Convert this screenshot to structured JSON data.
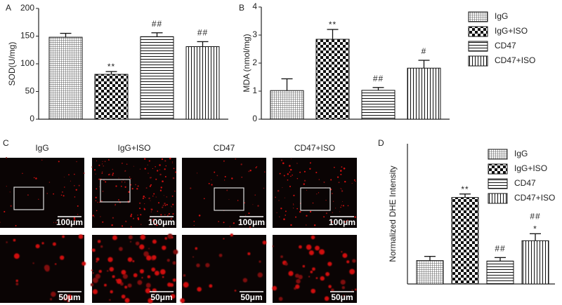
{
  "panel_labels": [
    "A",
    "B",
    "C",
    "D"
  ],
  "chart_data": [
    {
      "type": "bar",
      "ylabel": "SOD(U/mg)",
      "ylim": [
        0,
        200
      ],
      "yticks": [
        0,
        50,
        100,
        150,
        200
      ],
      "series": [
        {
          "name": "IgG",
          "pattern": "crosshatch",
          "values": [
            148
          ],
          "errors": [
            7
          ]
        },
        {
          "name": "IgG+ISO",
          "pattern": "checker",
          "values": [
            81
          ],
          "errors": [
            5
          ],
          "annotation": [
            "**"
          ]
        },
        {
          "name": "CD47",
          "pattern": "horizontal",
          "values": [
            149
          ],
          "errors": [
            7
          ],
          "annotation": [
            "##"
          ]
        },
        {
          "name": "CD47+ISO",
          "pattern": "vertical",
          "values": [
            131
          ],
          "errors": [
            9
          ],
          "annotation": [
            "##"
          ]
        }
      ]
    },
    {
      "type": "bar",
      "ylabel": "MDA (nmol/mg)",
      "ylim": [
        0,
        4
      ],
      "yticks": [
        0,
        1,
        2,
        3,
        4
      ],
      "series": [
        {
          "pattern": "crosshatch",
          "values": [
            1.02
          ],
          "errors": [
            0.42
          ]
        },
        {
          "pattern": "checker",
          "values": [
            2.85
          ],
          "errors": [
            0.35
          ],
          "annotation": [
            "**"
          ]
        },
        {
          "pattern": "horizontal",
          "values": [
            1.03
          ],
          "errors": [
            0.1
          ],
          "annotation": [
            "##"
          ]
        },
        {
          "pattern": "vertical",
          "values": [
            1.82
          ],
          "errors": [
            0.28
          ],
          "annotation": [
            "#"
          ]
        }
      ]
    },
    {
      "type": "bar",
      "ylabel": "Normalized DHE Intensity",
      "ylim": [
        0,
        6
      ],
      "series": [
        {
          "name": "IgG",
          "pattern": "crosshatch",
          "values": [
            1.0
          ],
          "errors": [
            0.18
          ]
        },
        {
          "name": "IgG+ISO",
          "pattern": "checker",
          "values": [
            3.7
          ],
          "errors": [
            0.15
          ],
          "annotation": [
            "**"
          ]
        },
        {
          "name": "CD47",
          "pattern": "horizontal",
          "values": [
            0.98
          ],
          "errors": [
            0.15
          ],
          "annotation": [
            "##"
          ]
        },
        {
          "name": "CD47+ISO",
          "pattern": "vertical",
          "values": [
            1.85
          ],
          "errors": [
            0.3
          ],
          "annotation": [
            "##",
            "*"
          ]
        }
      ]
    }
  ],
  "micrographs": {
    "conditions": [
      "IgG",
      "IgG+ISO",
      "CD47",
      "CD47+ISO"
    ],
    "scale_bars": [
      "100μm",
      "50μm"
    ]
  }
}
